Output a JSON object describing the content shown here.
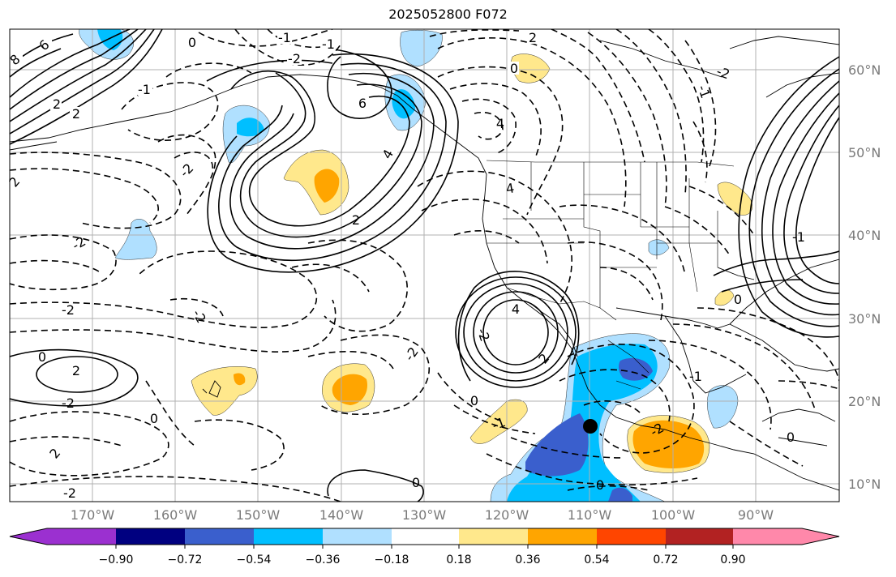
{
  "title": "2025052800 F072",
  "colors": {
    "coast": "#000000",
    "grid": "#b0b0b0",
    "contour": "#000000",
    "axis_labels": "#7a7a7a"
  },
  "lat_labels": [
    "60°N",
    "50°N",
    "40°N",
    "30°N",
    "20°N",
    "10°N"
  ],
  "lon_labels": [
    "170°W",
    "160°W",
    "150°W",
    "140°W",
    "130°W",
    "120°W",
    "110°W",
    "100°W",
    "90°W"
  ],
  "colorbar": {
    "extend": "both",
    "colors": [
      "#9b30d0",
      "#000080",
      "#3a5fcd",
      "#00bfff",
      "#b0e0ff",
      "#ffffff",
      "#ffe88c",
      "#ffa500",
      "#ff4500",
      "#b22222",
      "#ff88aa"
    ],
    "tick_labels": [
      "−0.90",
      "−0.72",
      "−0.54",
      "−0.36",
      "−0.18",
      "0.18",
      "0.36",
      "0.54",
      "0.72",
      "0.90"
    ]
  },
  "contour_labels": [
    {
      "text": "8"
    },
    {
      "text": "6"
    },
    {
      "text": "2"
    },
    {
      "text": "2"
    },
    {
      "text": "-1"
    },
    {
      "text": "-1"
    },
    {
      "text": "0"
    },
    {
      "text": "-2"
    },
    {
      "text": "-1"
    },
    {
      "text": "0"
    },
    {
      "text": "6"
    },
    {
      "text": "4"
    },
    {
      "text": "2"
    },
    {
      "text": "4"
    },
    {
      "text": "2"
    },
    {
      "text": "-2"
    },
    {
      "text": "-2"
    },
    {
      "text": "2"
    },
    {
      "text": "-2"
    },
    {
      "text": "4"
    },
    {
      "text": "-2"
    },
    {
      "text": "2"
    },
    {
      "text": "0"
    },
    {
      "text": "-2"
    },
    {
      "text": "2"
    },
    {
      "text": "-2"
    },
    {
      "text": "0"
    },
    {
      "text": "0"
    },
    {
      "text": "-1"
    },
    {
      "text": "0"
    },
    {
      "text": "0"
    },
    {
      "text": "-2"
    },
    {
      "text": "-2"
    },
    {
      "text": "-1"
    },
    {
      "text": "4"
    },
    {
      "text": "-2"
    },
    {
      "text": "2"
    },
    {
      "text": "-1"
    },
    {
      "text": "-2"
    },
    {
      "text": "0"
    },
    {
      "text": "-1"
    },
    {
      "text": "0"
    }
  ],
  "marker": {
    "type": "point",
    "lon": -110,
    "lat": 17
  }
}
